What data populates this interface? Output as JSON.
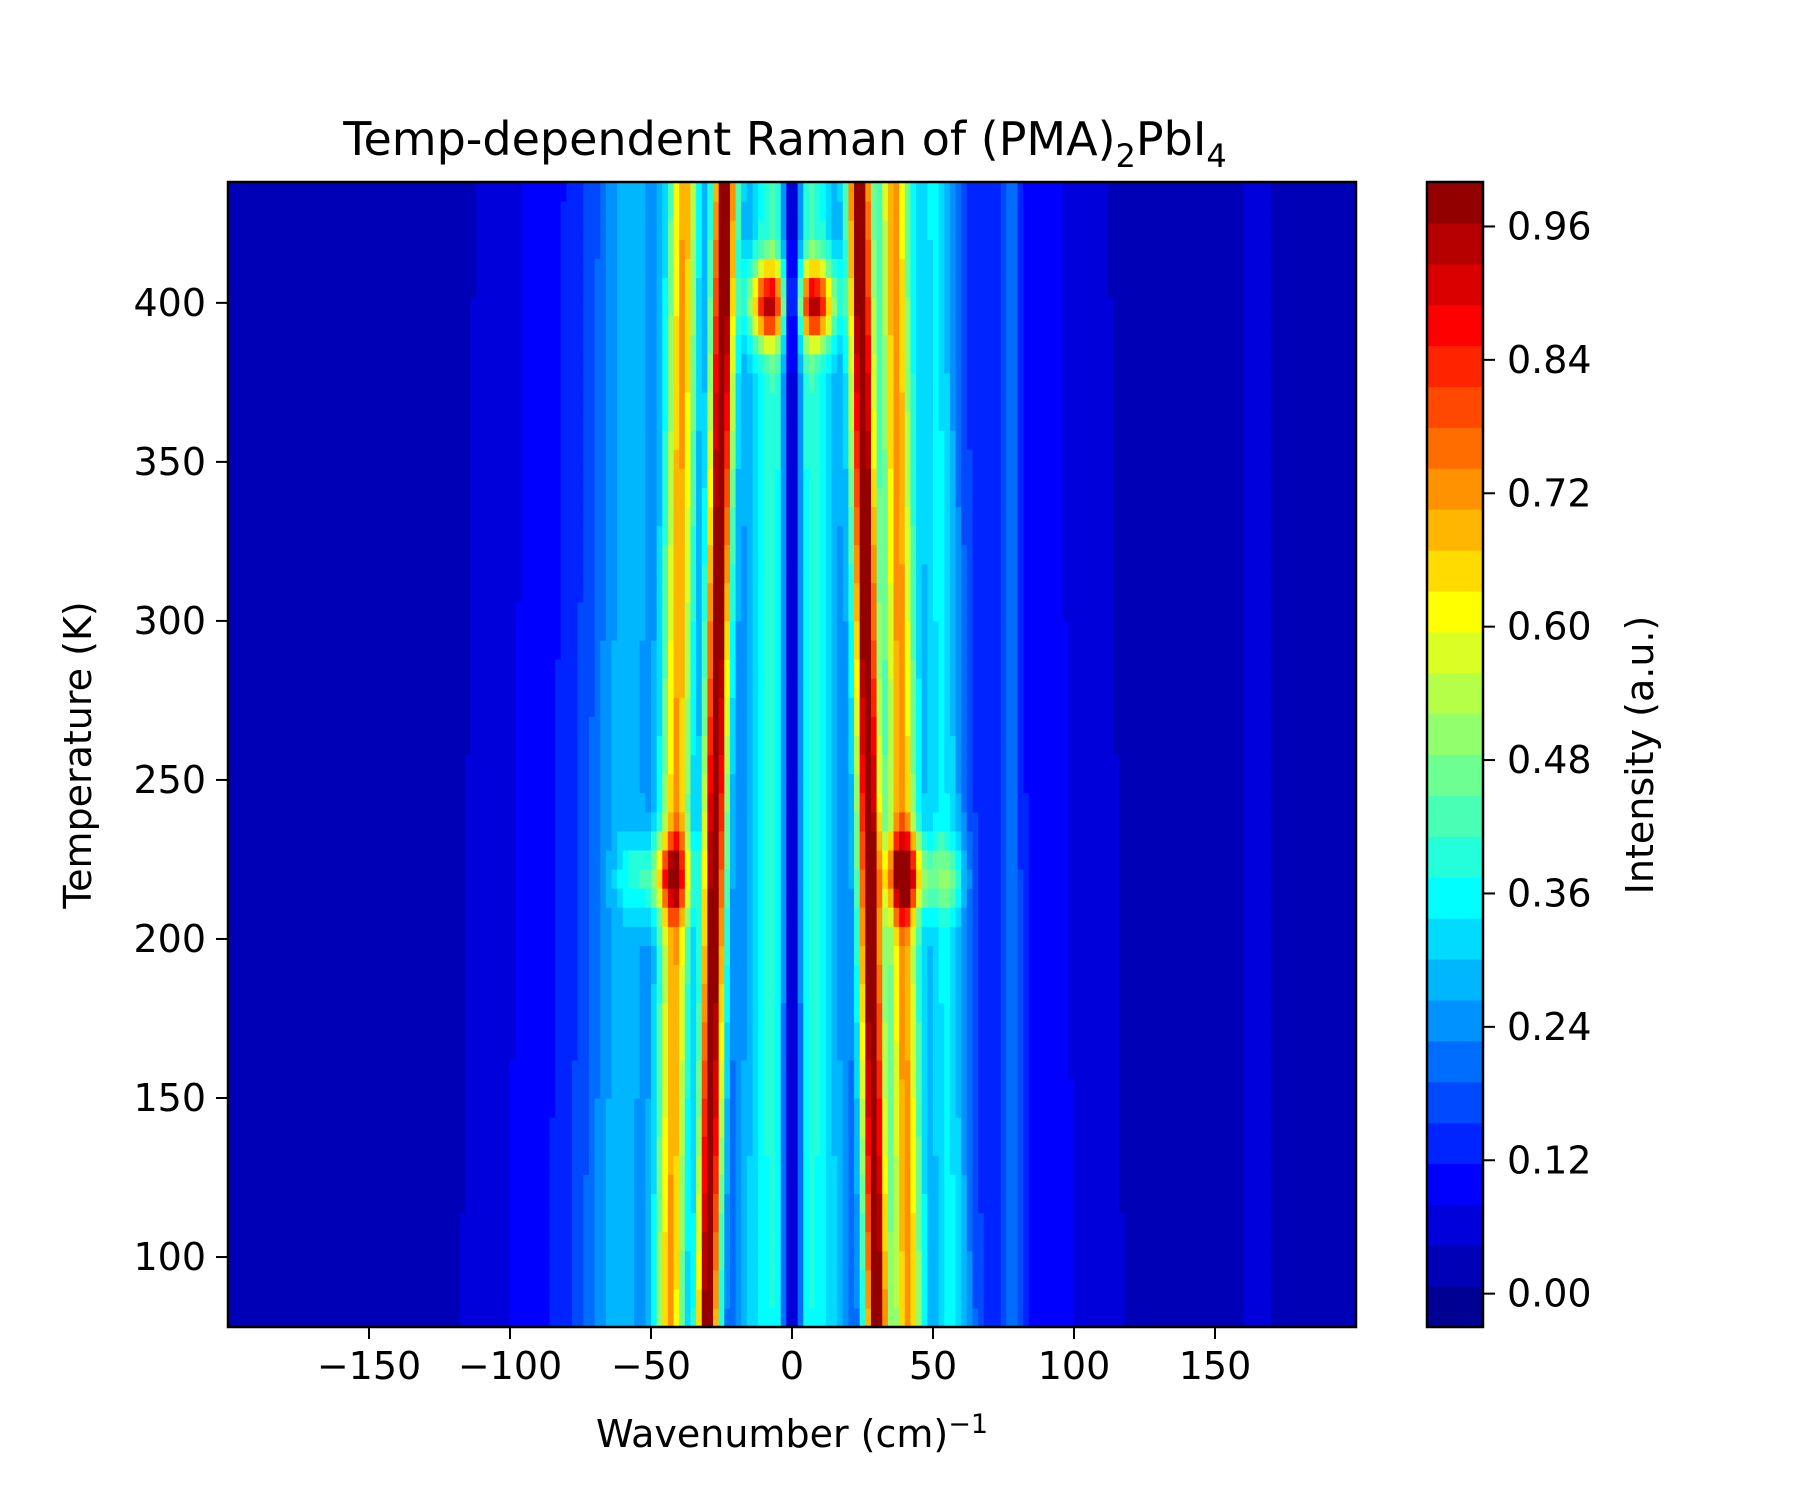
{
  "chart_data": {
    "type": "heatmap",
    "title": {
      "main": "Temp-dependent Raman of (PMA)",
      "sub1": "2",
      "mid": "PbI",
      "sub2": "4"
    },
    "xlabel": {
      "main": "Wavenumber (cm)",
      "sup": "−1"
    },
    "ylabel": "Temperature (K)",
    "colorbar_label": "Intensity (a.u.)",
    "xlim": [
      -200,
      200
    ],
    "ylim": [
      78,
      438
    ],
    "x_ticks": [
      {
        "value": -150,
        "label": "−150"
      },
      {
        "value": -100,
        "label": "−100"
      },
      {
        "value": -50,
        "label": "−50"
      },
      {
        "value": 0,
        "label": "0"
      },
      {
        "value": 50,
        "label": "50"
      },
      {
        "value": 100,
        "label": "100"
      },
      {
        "value": 150,
        "label": "150"
      }
    ],
    "y_ticks": [
      {
        "value": 100,
        "label": "100"
      },
      {
        "value": 150,
        "label": "150"
      },
      {
        "value": 200,
        "label": "200"
      },
      {
        "value": 250,
        "label": "250"
      },
      {
        "value": 300,
        "label": "300"
      },
      {
        "value": 350,
        "label": "350"
      },
      {
        "value": 400,
        "label": "400"
      }
    ],
    "colorbar_range": [
      -0.03,
      1.0
    ],
    "colorbar_ticks": [
      {
        "value": 0.0,
        "label": "0.00"
      },
      {
        "value": 0.12,
        "label": "0.12"
      },
      {
        "value": 0.24,
        "label": "0.24"
      },
      {
        "value": 0.36,
        "label": "0.36"
      },
      {
        "value": 0.48,
        "label": "0.48"
      },
      {
        "value": 0.6,
        "label": "0.60"
      },
      {
        "value": 0.72,
        "label": "0.72"
      },
      {
        "value": 0.84,
        "label": "0.84"
      },
      {
        "value": 0.96,
        "label": "0.96"
      }
    ],
    "colormap": "jet",
    "levels": 28,
    "baseline_intensity": 0.02,
    "peaks": [
      {
        "center_at_78K": -30,
        "center_at_438K": -24,
        "width": 3,
        "amplitude": 0.95
      },
      {
        "center_at_78K": 30,
        "center_at_438K": 24,
        "width": 3,
        "amplitude": 0.95
      },
      {
        "center_at_78K": -43,
        "center_at_438K": -38,
        "width": 4,
        "amplitude": 0.6
      },
      {
        "center_at_78K": 41,
        "center_at_438K": 36,
        "width": 4,
        "amplitude": 0.65
      },
      {
        "center_at_78K": -10,
        "center_at_438K": -8,
        "width": 10,
        "amplitude": 0.3
      },
      {
        "center_at_78K": 10,
        "center_at_438K": 8,
        "width": 10,
        "amplitude": 0.3
      },
      {
        "center_at_78K": -60,
        "center_at_438K": -55,
        "width": 10,
        "amplitude": 0.18
      },
      {
        "center_at_78K": 56,
        "center_at_438K": 50,
        "width": 6,
        "amplitude": 0.25
      },
      {
        "center_at_78K": -75,
        "center_at_438K": -70,
        "width": 25,
        "amplitude": 0.1
      },
      {
        "center_at_78K": 75,
        "center_at_438K": 70,
        "width": 25,
        "amplitude": 0.1
      },
      {
        "center_at_78K": 165,
        "center_at_438K": 165,
        "width": 3,
        "amplitude": 0.06
      },
      {
        "center_at_78K": 78,
        "center_at_438K": 78,
        "width": 2,
        "amplitude": 0.12
      }
    ],
    "hot_spots": [
      {
        "x": 40,
        "y": 220,
        "intensity": 0.45
      },
      {
        "x": -43,
        "y": 220,
        "intensity": 0.35
      },
      {
        "x": 8,
        "y": 400,
        "intensity": 0.55
      },
      {
        "x": -8,
        "y": 400,
        "intensity": 0.55
      },
      {
        "x": 55,
        "y": 220,
        "intensity": 0.15
      },
      {
        "x": -55,
        "y": 220,
        "intensity": 0.12
      }
    ],
    "central_dip": {
      "x": 0,
      "width": 2.5,
      "depth": 0.9
    }
  }
}
